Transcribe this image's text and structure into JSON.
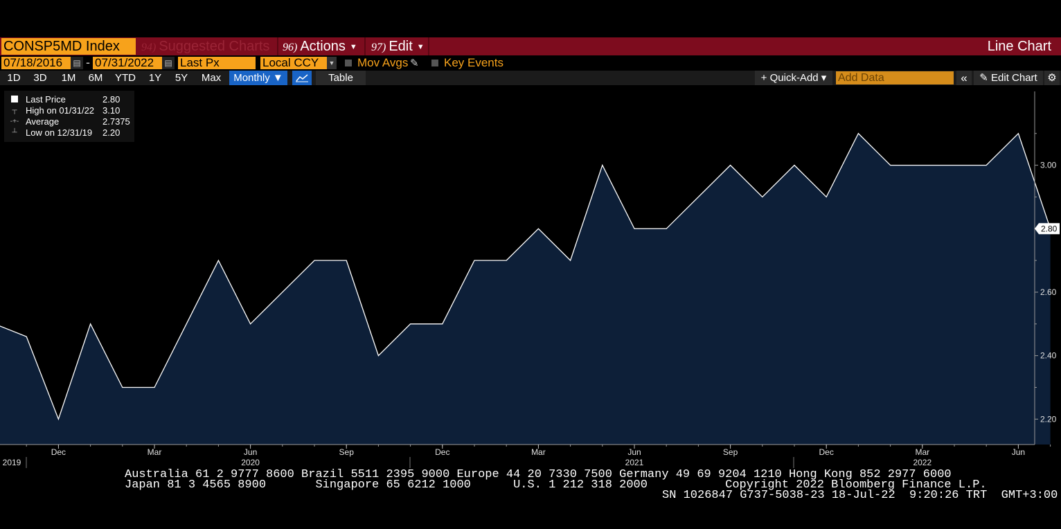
{
  "header": {
    "ticker": "CONSP5MD Index",
    "suggested": {
      "num": "94)",
      "label": "Suggested Charts"
    },
    "actions": {
      "num": "96)",
      "label": "Actions"
    },
    "edit": {
      "num": "97)",
      "label": "Edit"
    },
    "chart_type": "Line Chart"
  },
  "controls": {
    "start_date": "07/18/2016",
    "dash": "-",
    "end_date": "07/31/2022",
    "field": "Last Px",
    "currency": "Local CCY",
    "mov_avgs": "Mov Avgs",
    "key_events": "Key Events"
  },
  "periods": [
    "1D",
    "3D",
    "1M",
    "6M",
    "YTD",
    "1Y",
    "5Y",
    "Max"
  ],
  "frequency": "Monthly ▼",
  "table_label": "Table",
  "toolbar_right": {
    "quick_add": "+ Quick-Add ▾",
    "add_data_placeholder": "Add Data",
    "collapse": "«",
    "edit_chart": "✎ Edit Chart",
    "settings": "⚙"
  },
  "legend": {
    "last_price_label": "Last Price",
    "last_price_value": "2.80",
    "high_label": "High on 01/31/22",
    "high_value": "3.10",
    "average_label": "Average",
    "average_value": "2.7375",
    "low_label": "Low on 12/31/19",
    "low_value": "2.20"
  },
  "chart_data": {
    "type": "area",
    "x": [
      "2019-10",
      "2019-11",
      "2019-12",
      "2020-01",
      "2020-02",
      "2020-03",
      "2020-04",
      "2020-05",
      "2020-06",
      "2020-07",
      "2020-08",
      "2020-09",
      "2020-10",
      "2020-11",
      "2020-12",
      "2021-01",
      "2021-02",
      "2021-03",
      "2021-04",
      "2021-05",
      "2021-06",
      "2021-07",
      "2021-08",
      "2021-09",
      "2021-10",
      "2021-11",
      "2021-12",
      "2022-01",
      "2022-02",
      "2022-03",
      "2022-04",
      "2022-05",
      "2022-06",
      "2022-07"
    ],
    "values": [
      2.5,
      2.46,
      2.2,
      2.5,
      2.3,
      2.3,
      2.5,
      2.7,
      2.5,
      2.6,
      2.7,
      2.7,
      2.4,
      2.5,
      2.5,
      2.7,
      2.7,
      2.8,
      2.7,
      3.0,
      2.8,
      2.8,
      2.9,
      3.0,
      2.9,
      3.0,
      2.9,
      3.1,
      3.0,
      3.0,
      3.0,
      3.0,
      3.1,
      2.8
    ],
    "ylim": [
      2.12,
      3.25
    ],
    "yticks": [
      "2.20",
      "2.40",
      "2.60",
      "2.80",
      "3.00"
    ],
    "last_value_label": "2.80",
    "xticks": [
      {
        "month": "Dec",
        "year": "2019",
        "i": 2
      },
      {
        "month": "Mar",
        "year": "",
        "i": 5
      },
      {
        "month": "Jun",
        "year": "2020",
        "i": 8
      },
      {
        "month": "Sep",
        "year": "",
        "i": 11
      },
      {
        "month": "Dec",
        "year": "",
        "i": 14
      },
      {
        "month": "Mar",
        "year": "",
        "i": 17
      },
      {
        "month": "Jun",
        "year": "2021",
        "i": 20
      },
      {
        "month": "Sep",
        "year": "",
        "i": 23
      },
      {
        "month": "Dec",
        "year": "",
        "i": 26
      },
      {
        "month": "Mar",
        "year": "2022",
        "i": 29
      },
      {
        "month": "Jun",
        "year": "",
        "i": 32
      }
    ],
    "fill_color": "#0d1f38",
    "line_color": "#ffffff"
  },
  "footer": {
    "line1": "Australia 61 2 9777 8600 Brazil 5511 2395 9000 Europe 44 20 7330 7500 Germany 49 69 9204 1210 Hong Kong 852 2977 6000",
    "line2": "Japan 81 3 4565 8900       Singapore 65 6212 1000      U.S. 1 212 318 2000           Copyright 2022 Bloomberg Finance L.P.",
    "line3": "SN 1026847 G737-5038-23 18-Jul-22  9:20:26 TRT  GMT+3:00"
  }
}
